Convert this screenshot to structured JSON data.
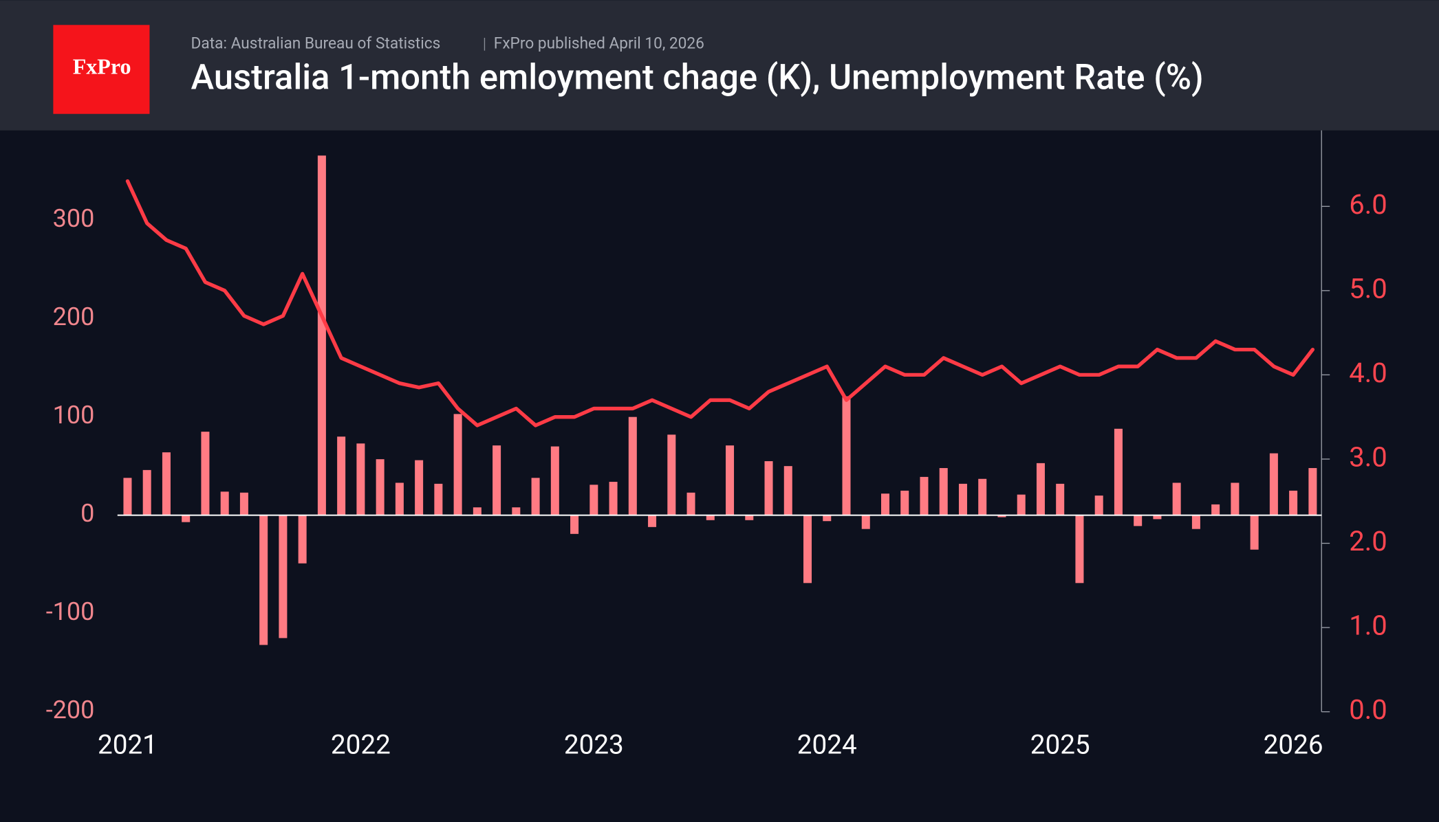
{
  "chart_data": {
    "type": "bar",
    "logo": "FxPro",
    "source": "Data: Australian Bureau of Statistics",
    "subtitle": "FxPro published April 10, 2026",
    "title": "Australia 1-month emloyment chage (K), Unemployment Rate (%)",
    "categories": [
      "2021",
      null,
      null,
      null,
      null,
      null,
      null,
      null,
      null,
      null,
      null,
      null,
      "2022",
      null,
      null,
      null,
      null,
      null,
      null,
      null,
      null,
      null,
      null,
      null,
      "2023",
      null,
      null,
      null,
      null,
      null,
      null,
      null,
      null,
      null,
      null,
      null,
      "2024",
      null,
      null,
      null,
      null,
      null,
      null,
      null,
      null,
      null,
      null,
      null,
      "2025",
      null,
      null,
      null,
      null,
      null,
      null,
      null,
      null,
      null,
      null,
      null,
      "2026",
      null
    ],
    "series": [
      {
        "type": "bar",
        "color": "#ff7b83",
        "values": [
          38,
          46,
          64,
          -7,
          85,
          24,
          23,
          -132,
          -125,
          -49,
          366,
          80,
          73,
          57,
          33,
          56,
          32,
          103,
          8,
          71,
          8,
          38,
          70,
          -19,
          31,
          34,
          100,
          -12,
          82,
          23,
          -5,
          71,
          -5,
          55,
          50,
          -69,
          -6,
          121,
          -14,
          22,
          25,
          39,
          48,
          32,
          37,
          -2,
          21,
          53,
          32,
          -69,
          20,
          88,
          -11,
          -4,
          33,
          -14,
          11,
          33,
          -35,
          63,
          25,
          48
        ]
      },
      {
        "type": "line",
        "axis": "y2",
        "color": "#ff3b46",
        "values": [
          6.3,
          5.8,
          5.6,
          5.5,
          5.1,
          5.0,
          4.7,
          4.6,
          4.7,
          5.2,
          4.7,
          4.2,
          4.1,
          4.0,
          3.9,
          3.85,
          3.9,
          3.6,
          3.4,
          3.5,
          3.6,
          3.4,
          3.5,
          3.5,
          3.6,
          3.6,
          3.6,
          3.7,
          3.6,
          3.5,
          3.7,
          3.7,
          3.6,
          3.8,
          3.9,
          4.0,
          4.1,
          3.7,
          3.9,
          4.1,
          4.0,
          4.0,
          4.2,
          4.1,
          4.0,
          4.1,
          3.9,
          4.0,
          4.1,
          4.0,
          4.0,
          4.1,
          4.1,
          4.3,
          4.2,
          4.2,
          4.4,
          4.3,
          4.3,
          4.1,
          4.0,
          4.3
        ]
      }
    ],
    "ylim": [
      -200,
      400
    ],
    "yticks": [
      -200,
      -100,
      0,
      100,
      200,
      300
    ],
    "y2lim": [
      0,
      7
    ],
    "y2ticks": [
      {
        "value": 0,
        "label": "0.0"
      },
      {
        "value": 1,
        "label": "1.0"
      },
      {
        "value": 2,
        "label": "2.0"
      },
      {
        "value": 3,
        "label": "3.0"
      },
      {
        "value": 4,
        "label": "4.0"
      },
      {
        "value": 5,
        "label": "5.0"
      },
      {
        "value": 6,
        "label": "6.0"
      }
    ]
  }
}
